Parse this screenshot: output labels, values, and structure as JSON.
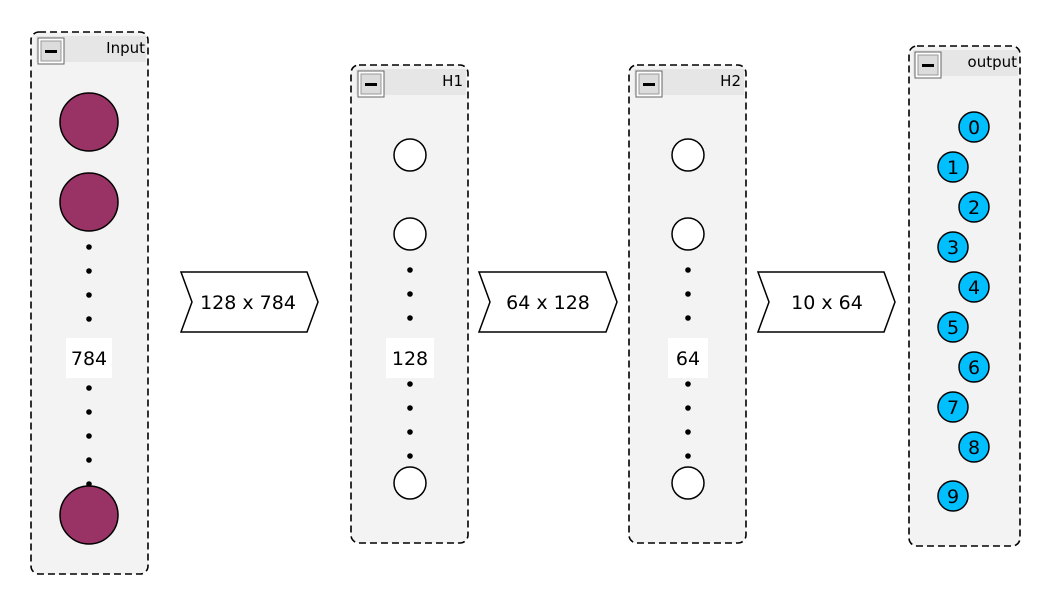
{
  "layers": [
    {
      "id": "input",
      "title": "Input",
      "count_label": "784",
      "collapse_icon": "minus-icon",
      "node_color": "#993366"
    },
    {
      "id": "h1",
      "title": "H1",
      "count_label": "128",
      "collapse_icon": "minus-icon",
      "node_color": "#ffffff"
    },
    {
      "id": "h2",
      "title": "H2",
      "count_label": "64",
      "collapse_icon": "minus-icon",
      "node_color": "#ffffff"
    },
    {
      "id": "output",
      "title": "output",
      "collapse_icon": "minus-icon",
      "node_color": "#00bfff",
      "nodes": [
        "0",
        "1",
        "2",
        "3",
        "4",
        "5",
        "6",
        "7",
        "8",
        "9"
      ]
    }
  ],
  "connections": [
    {
      "label": "128 x 784"
    },
    {
      "label": "64 x 128"
    },
    {
      "label": "10 x 64"
    }
  ],
  "colors": {
    "panel_fill": "#f3f3f3",
    "panel_header": "#e6e6e6",
    "border": "#000000"
  }
}
